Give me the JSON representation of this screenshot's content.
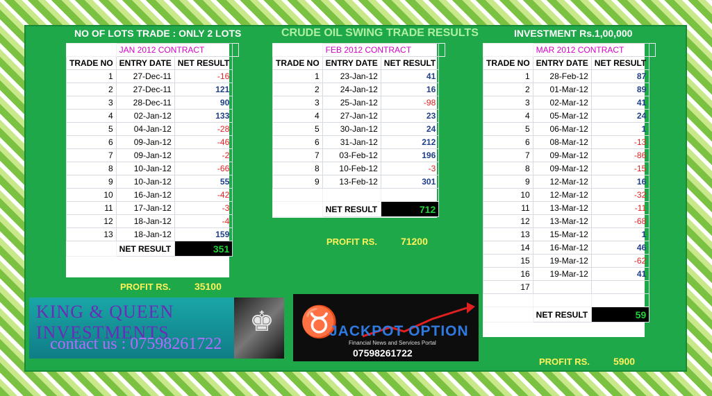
{
  "header": {
    "lots": "NO OF LOTS TRADE : ONLY 2 LOTS",
    "title": "CRUDE OIL SWING TRADE RESULTS",
    "investment": "INVESTMENT  Rs.1,00,000"
  },
  "columns": {
    "no": "TRADE NO",
    "date": "ENTRY DATE",
    "result": "NET RESULT"
  },
  "jan": {
    "title": "JAN 2012 CONTRACT",
    "rows": [
      {
        "no": "1",
        "date": "27-Dec-11",
        "result": "-16"
      },
      {
        "no": "2",
        "date": "27-Dec-11",
        "result": "121"
      },
      {
        "no": "3",
        "date": "28-Dec-11",
        "result": "90"
      },
      {
        "no": "4",
        "date": "02-Jan-12",
        "result": "133"
      },
      {
        "no": "5",
        "date": "04-Jan-12",
        "result": "-28"
      },
      {
        "no": "6",
        "date": "09-Jan-12",
        "result": "-46"
      },
      {
        "no": "7",
        "date": "09-Jan-12",
        "result": "-2"
      },
      {
        "no": "8",
        "date": "10-Jan-12",
        "result": "-66"
      },
      {
        "no": "9",
        "date": "10-Jan-12",
        "result": "55"
      },
      {
        "no": "10",
        "date": "16-Jan-12",
        "result": "-42"
      },
      {
        "no": "11",
        "date": "17-Jan-12",
        "result": "-3"
      },
      {
        "no": "12",
        "date": "18-Jan-12",
        "result": "-4"
      },
      {
        "no": "13",
        "date": "18-Jan-12",
        "result": "159"
      }
    ],
    "net_label": "NET RESULT",
    "net_value": "351",
    "profit_label": "PROFIT RS.",
    "profit_value": "35100"
  },
  "feb": {
    "title": "FEB 2012 CONTRACT",
    "rows": [
      {
        "no": "1",
        "date": "23-Jan-12",
        "result": "41"
      },
      {
        "no": "2",
        "date": "24-Jan-12",
        "result": "16"
      },
      {
        "no": "3",
        "date": "25-Jan-12",
        "result": "-98"
      },
      {
        "no": "4",
        "date": "27-Jan-12",
        "result": "23"
      },
      {
        "no": "5",
        "date": "30-Jan-12",
        "result": "24"
      },
      {
        "no": "6",
        "date": "31-Jan-12",
        "result": "212"
      },
      {
        "no": "7",
        "date": "03-Feb-12",
        "result": "196"
      },
      {
        "no": "8",
        "date": "10-Feb-12",
        "result": "-3"
      },
      {
        "no": "9",
        "date": "13-Feb-12",
        "result": "301"
      }
    ],
    "net_label": "NET RESULT",
    "net_value": "712",
    "profit_label": "PROFIT RS.",
    "profit_value": "71200"
  },
  "mar": {
    "title": "MAR 2012 CONTRACT",
    "rows": [
      {
        "no": "1",
        "date": "28-Feb-12",
        "result": "87"
      },
      {
        "no": "2",
        "date": "01-Mar-12",
        "result": "89"
      },
      {
        "no": "3",
        "date": "02-Mar-12",
        "result": "41"
      },
      {
        "no": "4",
        "date": "05-Mar-12",
        "result": "24"
      },
      {
        "no": "5",
        "date": "06-Mar-12",
        "result": "1"
      },
      {
        "no": "6",
        "date": "08-Mar-12",
        "result": "-13"
      },
      {
        "no": "7",
        "date": "09-Mar-12",
        "result": "-86"
      },
      {
        "no": "8",
        "date": "09-Mar-12",
        "result": "-15"
      },
      {
        "no": "9",
        "date": "12-Mar-12",
        "result": "16"
      },
      {
        "no": "10",
        "date": "12-Mar-12",
        "result": "-32"
      },
      {
        "no": "11",
        "date": "13-Mar-12",
        "result": "-11"
      },
      {
        "no": "12",
        "date": "13-Mar-12",
        "result": "-68"
      },
      {
        "no": "13",
        "date": "15-Mar-12",
        "result": "1"
      },
      {
        "no": "14",
        "date": "16-Mar-12",
        "result": "46"
      },
      {
        "no": "15",
        "date": "19-Mar-12",
        "result": "-62"
      },
      {
        "no": "16",
        "date": "19-Mar-12",
        "result": "41"
      },
      {
        "no": "17",
        "date": "",
        "result": ""
      }
    ],
    "net_label": "NET RESULT",
    "net_value": "59",
    "profit_label": "PROFIT RS.",
    "profit_value": "5900"
  },
  "ads": {
    "kq_name": "KING & QUEEN INVESTMENTS",
    "kq_contact": "contact us : 07598261722",
    "jp_brand": "JACKPOT OPTION",
    "jp_sub": "Financial News and Services Portal",
    "jp_phone": "07598261722"
  },
  "colors": {
    "panel": "#1fa84a",
    "positive": "#1f3f8a",
    "negative": "#e02020",
    "net": "#22d43a",
    "profit": "#fff35a",
    "contract_title": "#d600c8"
  }
}
